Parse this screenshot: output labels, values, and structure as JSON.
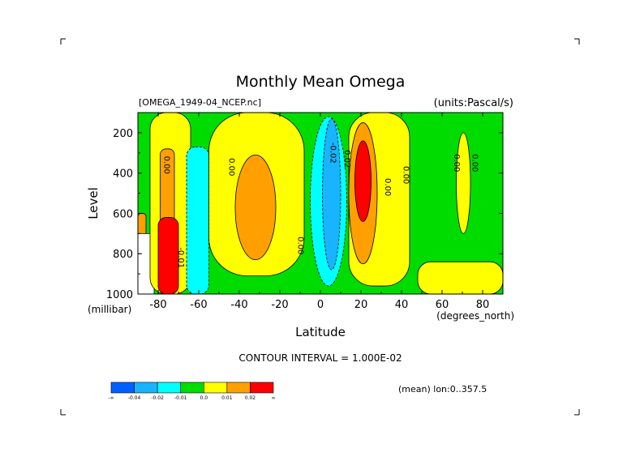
{
  "chart_data": {
    "type": "contour",
    "title": "Monthly Mean Omega",
    "source_label": "[OMEGA_1949-04_NCEP.nc]",
    "units_label": "(units:Pascal/s)",
    "xlabel": "Latitude",
    "xunits": "(degrees_north)",
    "ylabel": "Level",
    "yunits": "(millibar)",
    "xlim": [
      -90,
      90
    ],
    "ylim": [
      1000,
      100
    ],
    "x_ticks": [
      -80,
      -60,
      -40,
      -20,
      0,
      20,
      40,
      60,
      80
    ],
    "x_tick_labels": [
      "-80",
      "-60",
      "-40",
      "-20",
      "0",
      "20",
      "40",
      "60",
      "80"
    ],
    "y_ticks": [
      200,
      400,
      600,
      800,
      1000
    ],
    "y_tick_labels": [
      "200",
      "400",
      "600",
      "800",
      "1000"
    ],
    "contour_interval_text": "CONTOUR INTERVAL = 1.000E-02",
    "mean_note": "(mean) lon:0..357.5",
    "contour_labels": [
      {
        "text": "0.00",
        "lat": -77,
        "lev": 360
      },
      {
        "text": "0.00",
        "lat": -45,
        "lev": 370
      },
      {
        "text": "-0.01",
        "lat": -70,
        "lev": 820
      },
      {
        "text": "0.00",
        "lat": -11,
        "lev": 760
      },
      {
        "text": "-0.02",
        "lat": 5,
        "lev": 300
      },
      {
        "text": "0.02",
        "lat": 12,
        "lev": 330
      },
      {
        "text": "0.00",
        "lat": 32,
        "lev": 470
      },
      {
        "text": "0.00",
        "lat": 41,
        "lev": 410
      },
      {
        "text": "0.00",
        "lat": 66,
        "lev": 350
      },
      {
        "text": "0.00",
        "lat": 75,
        "lev": 350
      }
    ],
    "colorbar": {
      "colors": [
        "#0060ff",
        "#18b4ff",
        "#00ffff",
        "#00dc00",
        "#ffff00",
        "#ffa000",
        "#ff0000"
      ],
      "labels": [
        "-∞",
        "-0.04",
        "-0.02",
        "-0.01",
        "0.0",
        "0.01",
        "0.02",
        "∞"
      ]
    },
    "fill_colors": {
      "missing": "#ffffff",
      "neg_strong": "#0060ff",
      "neg_mid": "#18b4ff",
      "neg_weak": "#00ffff",
      "near_zero_neg": "#00dc00",
      "near_zero_pos": "#ffff00",
      "pos_weak": "#ffa000",
      "pos_strong": "#ff0000"
    },
    "regions": [
      {
        "name": "high-lat-south-rise",
        "class": "pos_weak",
        "lat_range": [
          -90,
          -86
        ],
        "lev_range": [
          600,
          1000
        ]
      },
      {
        "name": "south-polar-missing",
        "class": "missing",
        "lat_range": [
          -90,
          -82
        ],
        "lev_range": [
          700,
          1000
        ]
      },
      {
        "name": "southern-descent-yellow",
        "class": "near_zero_pos",
        "lat_range": [
          -84,
          -64
        ],
        "lev_range": [
          100,
          1000
        ]
      },
      {
        "name": "southern-orange-1",
        "class": "pos_weak",
        "lat_range": [
          -79,
          -72
        ],
        "lev_range": [
          280,
          1000
        ]
      },
      {
        "name": "southern-red",
        "class": "pos_strong",
        "lat_range": [
          -80,
          -70
        ],
        "lev_range": [
          620,
          1000
        ]
      },
      {
        "name": "southern-cyan",
        "class": "neg_weak",
        "lat_range": [
          -66,
          -55
        ],
        "lev_range": [
          270,
          1000
        ]
      },
      {
        "name": "southern-midlat-yellow",
        "class": "near_zero_pos",
        "lat_range": [
          -55,
          -8
        ],
        "lev_range": [
          100,
          910
        ]
      },
      {
        "name": "southern-midlat-orange",
        "class": "pos_weak",
        "lat_range": [
          -42,
          -22
        ],
        "lev_range": [
          310,
          830
        ]
      },
      {
        "name": "equatorial-cyan",
        "class": "neg_weak",
        "lat_range": [
          -5,
          13
        ],
        "lev_range": [
          120,
          960
        ]
      },
      {
        "name": "equatorial-blue",
        "class": "neg_mid",
        "lat_range": [
          1,
          10
        ],
        "lev_range": [
          130,
          880
        ]
      },
      {
        "name": "tropical-yellow",
        "class": "near_zero_pos",
        "lat_range": [
          14,
          44
        ],
        "lev_range": [
          100,
          960
        ]
      },
      {
        "name": "tropical-orange",
        "class": "pos_weak",
        "lat_range": [
          14,
          28
        ],
        "lev_range": [
          150,
          850
        ]
      },
      {
        "name": "tropical-red",
        "class": "pos_strong",
        "lat_range": [
          17,
          25
        ],
        "lev_range": [
          240,
          640
        ]
      },
      {
        "name": "northern-yellow-lower",
        "class": "near_zero_pos",
        "lat_range": [
          48,
          90
        ],
        "lev_range": [
          840,
          1000
        ]
      },
      {
        "name": "northern-yellow-band",
        "class": "near_zero_pos",
        "lat_range": [
          67,
          74
        ],
        "lev_range": [
          200,
          700
        ]
      }
    ],
    "background_class": "near_zero_neg"
  }
}
